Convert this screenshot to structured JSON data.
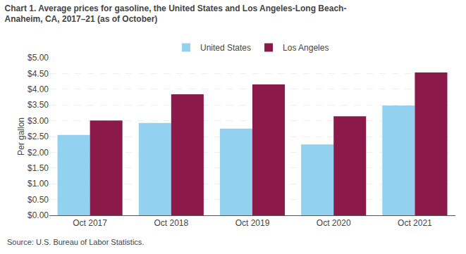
{
  "chart_data": {
    "type": "bar",
    "title": "Chart 1. Average prices for gasoline, the United States and Los Angeles-Long Beach-\nAnaheim, CA, 2017–21 (as of October)",
    "y_label": "Per gallon",
    "source": "Source: U.S. Bureau of Labor Statistics.",
    "categories": [
      "Oct 2017",
      "Oct 2018",
      "Oct 2019",
      "Oct 2020",
      "Oct 2021"
    ],
    "series": [
      {
        "name": "United States",
        "color": "#92D1F0",
        "values": [
          2.55,
          2.93,
          2.75,
          2.25,
          3.48
        ]
      },
      {
        "name": "Los Angeles",
        "color": "#8B1A4A",
        "values": [
          3.01,
          3.84,
          4.15,
          3.14,
          4.53
        ]
      }
    ],
    "ylim": [
      0,
      5.0
    ],
    "yticks": [
      {
        "value": 0.0,
        "label": "$0.00"
      },
      {
        "value": 0.5,
        "label": "$0.50"
      },
      {
        "value": 1.0,
        "label": "$1.00"
      },
      {
        "value": 1.5,
        "label": "$1.50"
      },
      {
        "value": 2.0,
        "label": "$2.00"
      },
      {
        "value": 2.5,
        "label": "$2.50"
      },
      {
        "value": 3.0,
        "label": "$3.00"
      },
      {
        "value": 3.5,
        "label": "$3.50"
      },
      {
        "value": 4.0,
        "label": "$4.00"
      },
      {
        "value": 4.5,
        "label": "$4.50"
      },
      {
        "value": 5.0,
        "label": "$5.00"
      }
    ],
    "grid": true,
    "legend": "top"
  }
}
